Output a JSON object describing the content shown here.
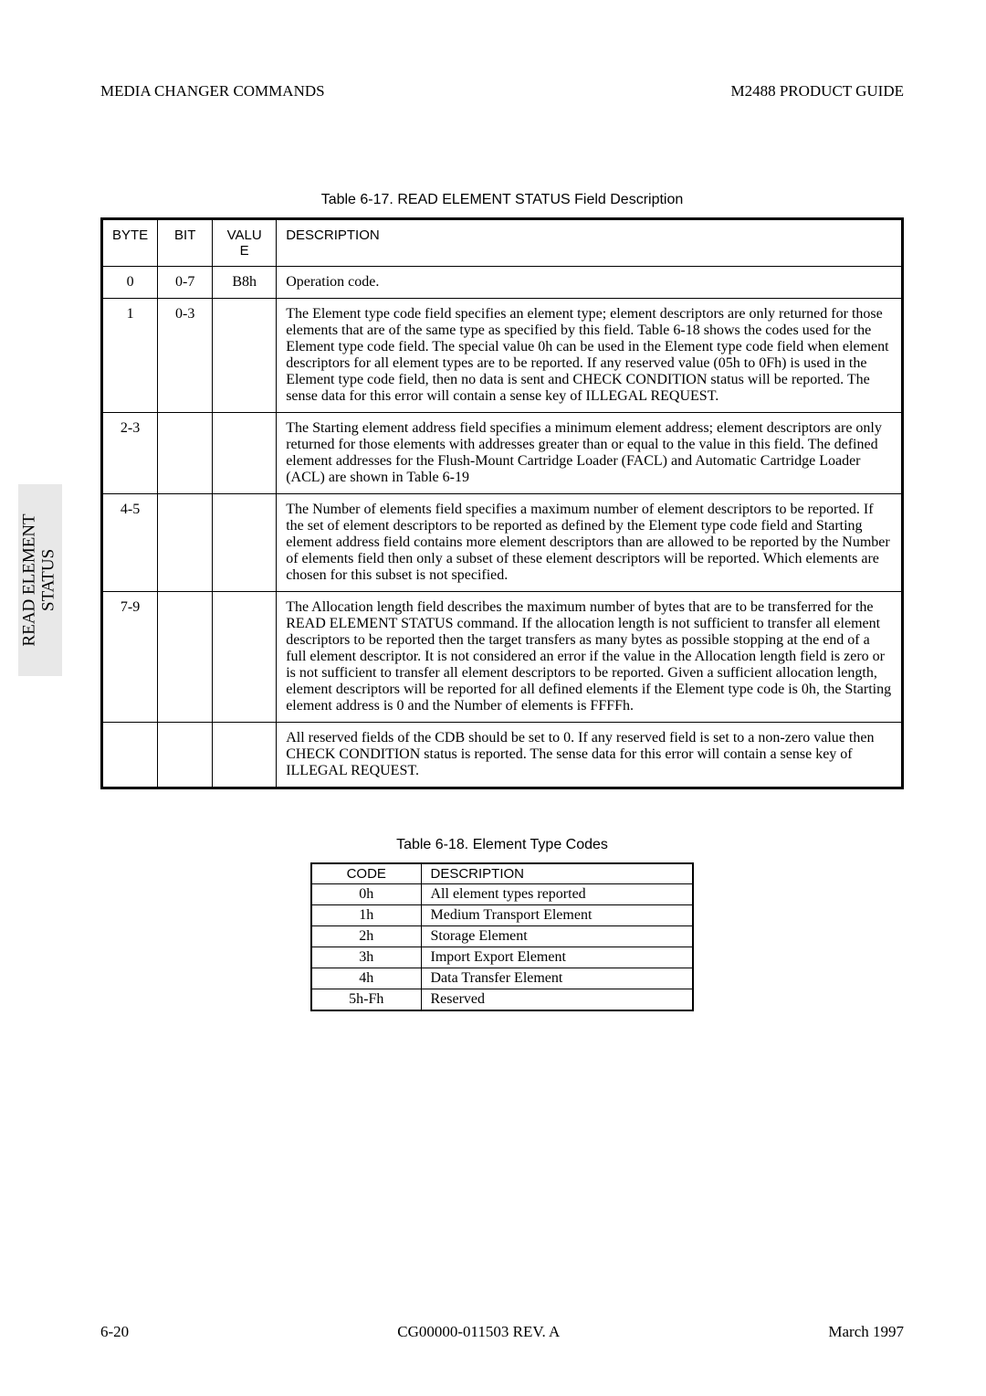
{
  "header": {
    "left": "MEDIA CHANGER COMMANDS",
    "right": "M2488 PRODUCT GUIDE"
  },
  "side_tab": {
    "line1": "READ ELEMENT",
    "line2": "STATUS"
  },
  "table1": {
    "caption": "Table 6-17.   READ ELEMENT STATUS Field Description",
    "columns": [
      "BYTE",
      "BIT",
      "VALU E",
      "DESCRIPTION"
    ],
    "rows": [
      {
        "byte": "0",
        "bit": "0-7",
        "valu": "B8h",
        "desc": "Operation code."
      },
      {
        "byte": "1",
        "bit": "0-3",
        "valu": "",
        "desc": "The Element type code field specifies an element type; element descriptors are only returned for those elements that are of the same type as specified by this field. Table 6-18 shows the codes used for the Element type code field. The special value 0h can be used in the Element type code field when element descriptors for all element types are to be reported. If any reserved value (05h to 0Fh) is used in the Element type code field, then no data is sent and CHECK CONDITION status will be reported. The sense data for this error will contain a sense key of ILLEGAL REQUEST."
      },
      {
        "byte": "2-3",
        "bit": "",
        "valu": "",
        "desc": "The Starting element address field specifies a minimum element address; element descriptors are only returned for those elements with addresses greater than or equal to the value in this field. The defined element addresses for the Flush-Mount Cartridge Loader (FACL) and Automatic Cartridge Loader (ACL) are shown in Table 6-19"
      },
      {
        "byte": "4-5",
        "bit": "",
        "valu": "",
        "desc": "The Number of elements field specifies a maximum number of element descriptors to be reported. If the set of element descriptors to be reported as defined by the Element type code field and Starting element address field contains more element descriptors than are allowed to be reported by the Number of elements field then only a subset of these element descriptors will be reported. Which elements are chosen for this subset is not specified."
      },
      {
        "byte": "7-9",
        "bit": "",
        "valu": "",
        "desc": "The Allocation length field describes the maximum number of bytes that are to be transferred for the READ ELEMENT STATUS command. If the allocation length is not sufficient to transfer all element descriptors to be reported then the target transfers as many bytes as possible stopping at the end of a full element descriptor. It is not considered an error if the value in the Allocation length field is zero or is not sufficient to transfer all element descriptors to be reported.\nGiven a sufficient allocation length, element descriptors will be reported for all defined elements if the Element type code is 0h, the Starting element address is 0 and the Number of elements is FFFFh."
      },
      {
        "byte": "",
        "bit": "",
        "valu": "",
        "desc": "All reserved fields of the CDB should be set to 0. If any reserved field is set to a non-zero value then CHECK CONDITION status is reported. The sense data for this error will contain a sense key of ILLEGAL REQUEST."
      }
    ]
  },
  "table2": {
    "caption": "Table 6-18.   Element Type Codes",
    "columns": [
      "CODE",
      "DESCRIPTION"
    ],
    "rows": [
      {
        "code": "0h",
        "desc": "All element types reported"
      },
      {
        "code": "1h",
        "desc": "Medium Transport Element"
      },
      {
        "code": "2h",
        "desc": "Storage Element"
      },
      {
        "code": "3h",
        "desc": "Import Export Element"
      },
      {
        "code": "4h",
        "desc": "Data Transfer Element"
      },
      {
        "code": "5h-Fh",
        "desc": "Reserved"
      }
    ]
  },
  "footer": {
    "left": "6-20",
    "center": "CG00000-011503 REV. A",
    "right": "March 1997"
  }
}
